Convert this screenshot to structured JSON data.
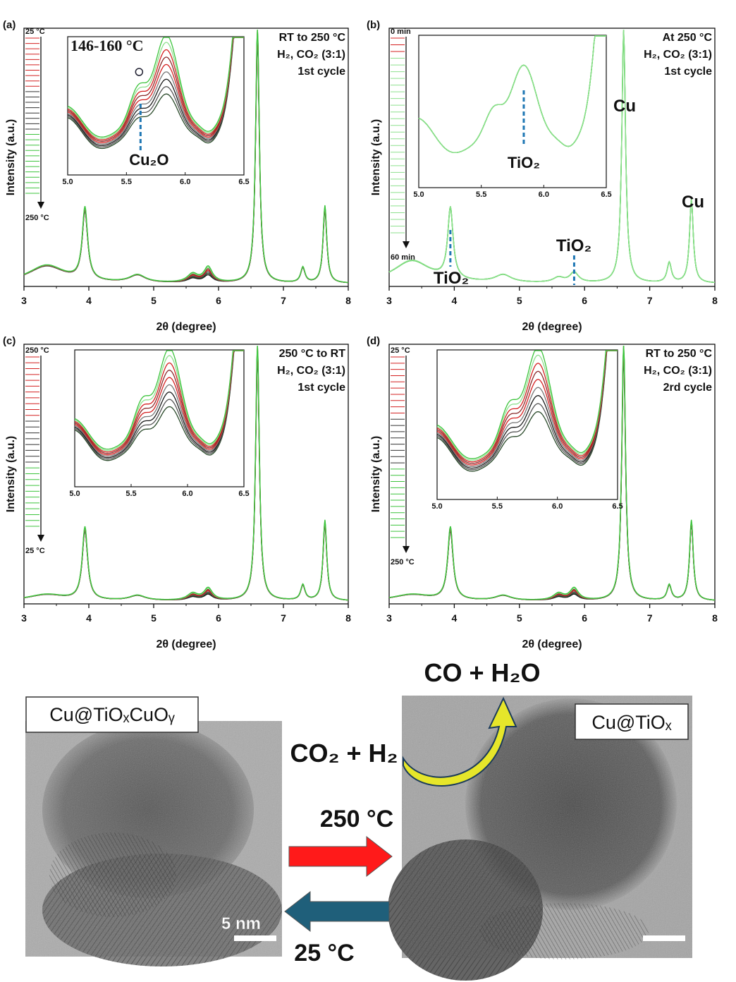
{
  "colors": {
    "green": "#3dc43d",
    "lightgreen": "#8ee08e",
    "red": "#d42020",
    "dark": "#1a1a1a",
    "darkgreen": "#2a4a2a",
    "blue_dash": "#1f77b4",
    "arrow_red": "#ff1a1a",
    "arrow_blue": "#1f5f7a",
    "arrow_yellow": "#e6e62a"
  },
  "chart_data": [
    {
      "id": "a",
      "type": "line",
      "panel_label": "(a)",
      "xlabel": "2θ (degree)",
      "ylabel": "Intensity (a.u.)",
      "xlim": [
        3,
        8
      ],
      "xticks": [
        3,
        4,
        5,
        6,
        7,
        8
      ],
      "condition_lines": [
        "RT to 250 °C",
        "H₂, CO₂ (3:1)",
        "1st cycle"
      ],
      "legend_top": "25 °C",
      "legend_bottom": "250 °C",
      "peaks": [
        {
          "x": 3.35,
          "h": 0.07,
          "w": 0.35
        },
        {
          "x": 3.94,
          "h": 0.28,
          "w": 0.05
        },
        {
          "x": 4.75,
          "h": 0.03,
          "w": 0.15
        },
        {
          "x": 5.6,
          "h": 0.025,
          "w": 0.1
        },
        {
          "x": 5.84,
          "h": 0.045,
          "w": 0.08
        },
        {
          "x": 6.6,
          "h": 1.0,
          "w": 0.035
        },
        {
          "x": 7.3,
          "h": 0.06,
          "w": 0.04
        },
        {
          "x": 7.64,
          "h": 0.3,
          "w": 0.035
        }
      ],
      "inset": {
        "xlim": [
          5.0,
          6.5
        ],
        "xticks": [
          5.0,
          5.5,
          6.0,
          6.5
        ],
        "annotations": [
          "146-160 °C",
          "Cu₂O"
        ]
      },
      "main_annotations": []
    },
    {
      "id": "b",
      "type": "line",
      "panel_label": "(b)",
      "xlabel": "2θ (degree)",
      "ylabel": "Intensity (a.u.)",
      "xlim": [
        3,
        8
      ],
      "xticks": [
        3,
        4,
        5,
        6,
        7,
        8
      ],
      "condition_lines": [
        "At 250 °C",
        "H₂, CO₂ (3:1)",
        "1st cycle"
      ],
      "legend_top": "0 min",
      "legend_bottom": "60 min",
      "peaks": [
        {
          "x": 3.35,
          "h": 0.09,
          "w": 0.35
        },
        {
          "x": 3.94,
          "h": 0.28,
          "w": 0.05
        },
        {
          "x": 4.75,
          "h": 0.03,
          "w": 0.15
        },
        {
          "x": 5.6,
          "h": 0.02,
          "w": 0.1
        },
        {
          "x": 5.84,
          "h": 0.04,
          "w": 0.08
        },
        {
          "x": 6.6,
          "h": 1.0,
          "w": 0.035
        },
        {
          "x": 7.3,
          "h": 0.08,
          "w": 0.04
        },
        {
          "x": 7.64,
          "h": 0.33,
          "w": 0.035
        }
      ],
      "inset": {
        "xlim": [
          5.0,
          6.5
        ],
        "xticks": [
          5.0,
          5.5,
          6.0,
          6.5
        ],
        "annotations": [
          "TiO₂"
        ]
      },
      "main_annotations": [
        "Cu",
        "Cu",
        "TiO₂",
        "TiO₂"
      ]
    },
    {
      "id": "c",
      "type": "line",
      "panel_label": "(c)",
      "xlabel": "2θ (degree)",
      "ylabel": "Intensity (a.u.)",
      "xlim": [
        3,
        8
      ],
      "xticks": [
        3,
        4,
        5,
        6,
        7,
        8
      ],
      "condition_lines": [
        "250 °C to RT",
        "H₂, CO₂ (3:1)",
        "1st cycle"
      ],
      "legend_top": "250 °C",
      "legend_bottom": "25 °C",
      "peaks": [
        {
          "x": 3.35,
          "h": 0.025,
          "w": 0.35
        },
        {
          "x": 3.94,
          "h": 0.28,
          "w": 0.05
        },
        {
          "x": 4.75,
          "h": 0.02,
          "w": 0.15
        },
        {
          "x": 5.6,
          "h": 0.02,
          "w": 0.1
        },
        {
          "x": 5.84,
          "h": 0.035,
          "w": 0.08
        },
        {
          "x": 6.6,
          "h": 1.0,
          "w": 0.035
        },
        {
          "x": 7.3,
          "h": 0.06,
          "w": 0.04
        },
        {
          "x": 7.64,
          "h": 0.31,
          "w": 0.035
        }
      ],
      "inset": {
        "xlim": [
          5.0,
          6.5
        ],
        "xticks": [
          5.0,
          5.5,
          6.0,
          6.5
        ],
        "annotations": []
      },
      "main_annotations": []
    },
    {
      "id": "d",
      "type": "line",
      "panel_label": "(d)",
      "xlabel": "2θ (degree)",
      "ylabel": "Intensity (a.u.)",
      "xlim": [
        3,
        8
      ],
      "xticks": [
        3,
        4,
        5,
        6,
        7,
        8
      ],
      "condition_lines": [
        "RT to 250 °C",
        "H₂, CO₂ (3:1)",
        "2rd cycle"
      ],
      "legend_top": "25 °C",
      "legend_bottom": "250 °C",
      "peaks": [
        {
          "x": 3.35,
          "h": 0.025,
          "w": 0.35
        },
        {
          "x": 3.94,
          "h": 0.28,
          "w": 0.05
        },
        {
          "x": 4.75,
          "h": 0.02,
          "w": 0.15
        },
        {
          "x": 5.6,
          "h": 0.02,
          "w": 0.1
        },
        {
          "x": 5.84,
          "h": 0.035,
          "w": 0.08
        },
        {
          "x": 6.6,
          "h": 1.0,
          "w": 0.035
        },
        {
          "x": 7.3,
          "h": 0.06,
          "w": 0.04
        },
        {
          "x": 7.64,
          "h": 0.31,
          "w": 0.035
        }
      ],
      "inset": {
        "xlim": [
          5.0,
          6.5
        ],
        "xticks": [
          5.0,
          5.5,
          6.0,
          6.5
        ],
        "annotations": []
      },
      "main_annotations": []
    }
  ],
  "tem": {
    "left_label": "Cu@TiOₓCuOᵧ",
    "right_label": "Cu@TiOₓ",
    "reactants": "CO₂ + H₂",
    "products": "CO + H₂O",
    "forward_temp": "250 °C",
    "reverse_temp": "25 °C",
    "scale_bar": "5 nm"
  }
}
